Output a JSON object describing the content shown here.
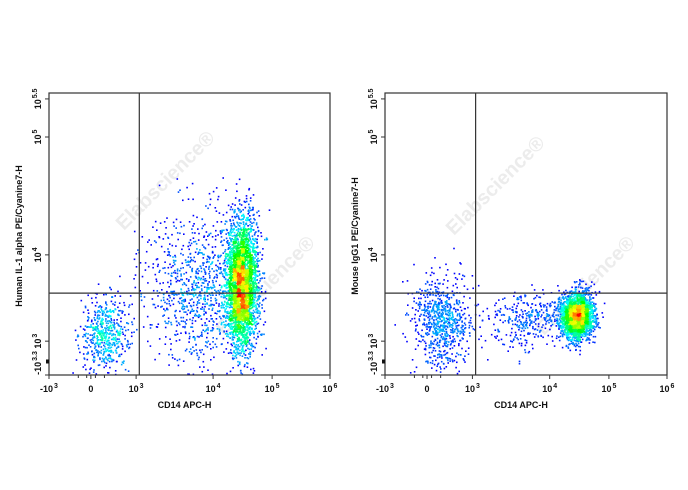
{
  "watermark": "Elabscience®",
  "colors": {
    "frame": "#333333",
    "gate": "#333333",
    "colormap": [
      "#0000ff",
      "#00ffff",
      "#00ff00",
      "#ffff00",
      "#ff0000"
    ]
  },
  "chart_data": [
    {
      "type": "scatter",
      "subtype": "flow-cytometry density dot plot",
      "xlabel": "CD14 APC-H",
      "ylabel": "Human IL-1 alpha PE/Cyanine7-H",
      "x_scale": "biexponential",
      "y_scale": "biexponential",
      "xlim": [
        -1000,
        1000000
      ],
      "ylim": [
        -1995,
        355000
      ],
      "x_ticks": [
        {
          "value": -1000,
          "base": "-10",
          "exp": "3"
        },
        {
          "value": 0,
          "base": "0",
          "exp": ""
        },
        {
          "value": 1000,
          "base": "10",
          "exp": "3"
        },
        {
          "value": 10000,
          "base": "10",
          "exp": "4"
        },
        {
          "value": 100000,
          "base": "10",
          "exp": "5"
        },
        {
          "value": 1000000,
          "base": "10",
          "exp": "6"
        }
      ],
      "y_ticks": [
        {
          "value": -1995,
          "base": "-10",
          "exp": "3.3"
        },
        {
          "value": 1000,
          "base": "10",
          "exp": "3"
        },
        {
          "value": 10000,
          "base": "10",
          "exp": "4"
        },
        {
          "value": 100000,
          "base": "10",
          "exp": "5"
        },
        {
          "value": 316228,
          "base": "10",
          "exp": "5.5"
        }
      ],
      "gates": {
        "x": 1100,
        "y": 3600
      },
      "populations": [
        {
          "x": 300,
          "y": 1200,
          "sx_decades": 0.2,
          "sy_decades": 0.2,
          "count": 550
        },
        {
          "x": 30000,
          "y": 4500,
          "sx_decades": 0.13,
          "sy_decades": 0.35,
          "count": 3200
        },
        {
          "x": 6000,
          "y": 4000,
          "sx_decades": 0.4,
          "sy_decades": 0.42,
          "count": 900
        }
      ]
    },
    {
      "type": "scatter",
      "subtype": "flow-cytometry density dot plot",
      "xlabel": "CD14 APC-H",
      "ylabel": "Mouse IgG1 PE/Cyanine7-H",
      "x_scale": "biexponential",
      "y_scale": "biexponential",
      "xlim": [
        -1000,
        1000000
      ],
      "ylim": [
        -1995,
        355000
      ],
      "x_ticks": [
        {
          "value": -1000,
          "base": "-10",
          "exp": "3"
        },
        {
          "value": 0,
          "base": "0",
          "exp": ""
        },
        {
          "value": 1000,
          "base": "10",
          "exp": "3"
        },
        {
          "value": 10000,
          "base": "10",
          "exp": "4"
        },
        {
          "value": 100000,
          "base": "10",
          "exp": "5"
        },
        {
          "value": 1000000,
          "base": "10",
          "exp": "6"
        }
      ],
      "y_ticks": [
        {
          "value": -1995,
          "base": "-10",
          "exp": "3.3"
        },
        {
          "value": 1000,
          "base": "10",
          "exp": "3"
        },
        {
          "value": 10000,
          "base": "10",
          "exp": "4"
        },
        {
          "value": 100000,
          "base": "10",
          "exp": "5"
        },
        {
          "value": 316228,
          "base": "10",
          "exp": "5.5"
        }
      ],
      "gates": {
        "x": 1100,
        "y": 3600
      },
      "populations": [
        {
          "x": 300,
          "y": 1700,
          "sx_decades": 0.22,
          "sy_decades": 0.25,
          "count": 750
        },
        {
          "x": 28000,
          "y": 2000,
          "sx_decades": 0.13,
          "sy_decades": 0.12,
          "count": 2600
        },
        {
          "x": 5000,
          "y": 1800,
          "sx_decades": 0.35,
          "sy_decades": 0.15,
          "count": 350
        }
      ]
    }
  ]
}
